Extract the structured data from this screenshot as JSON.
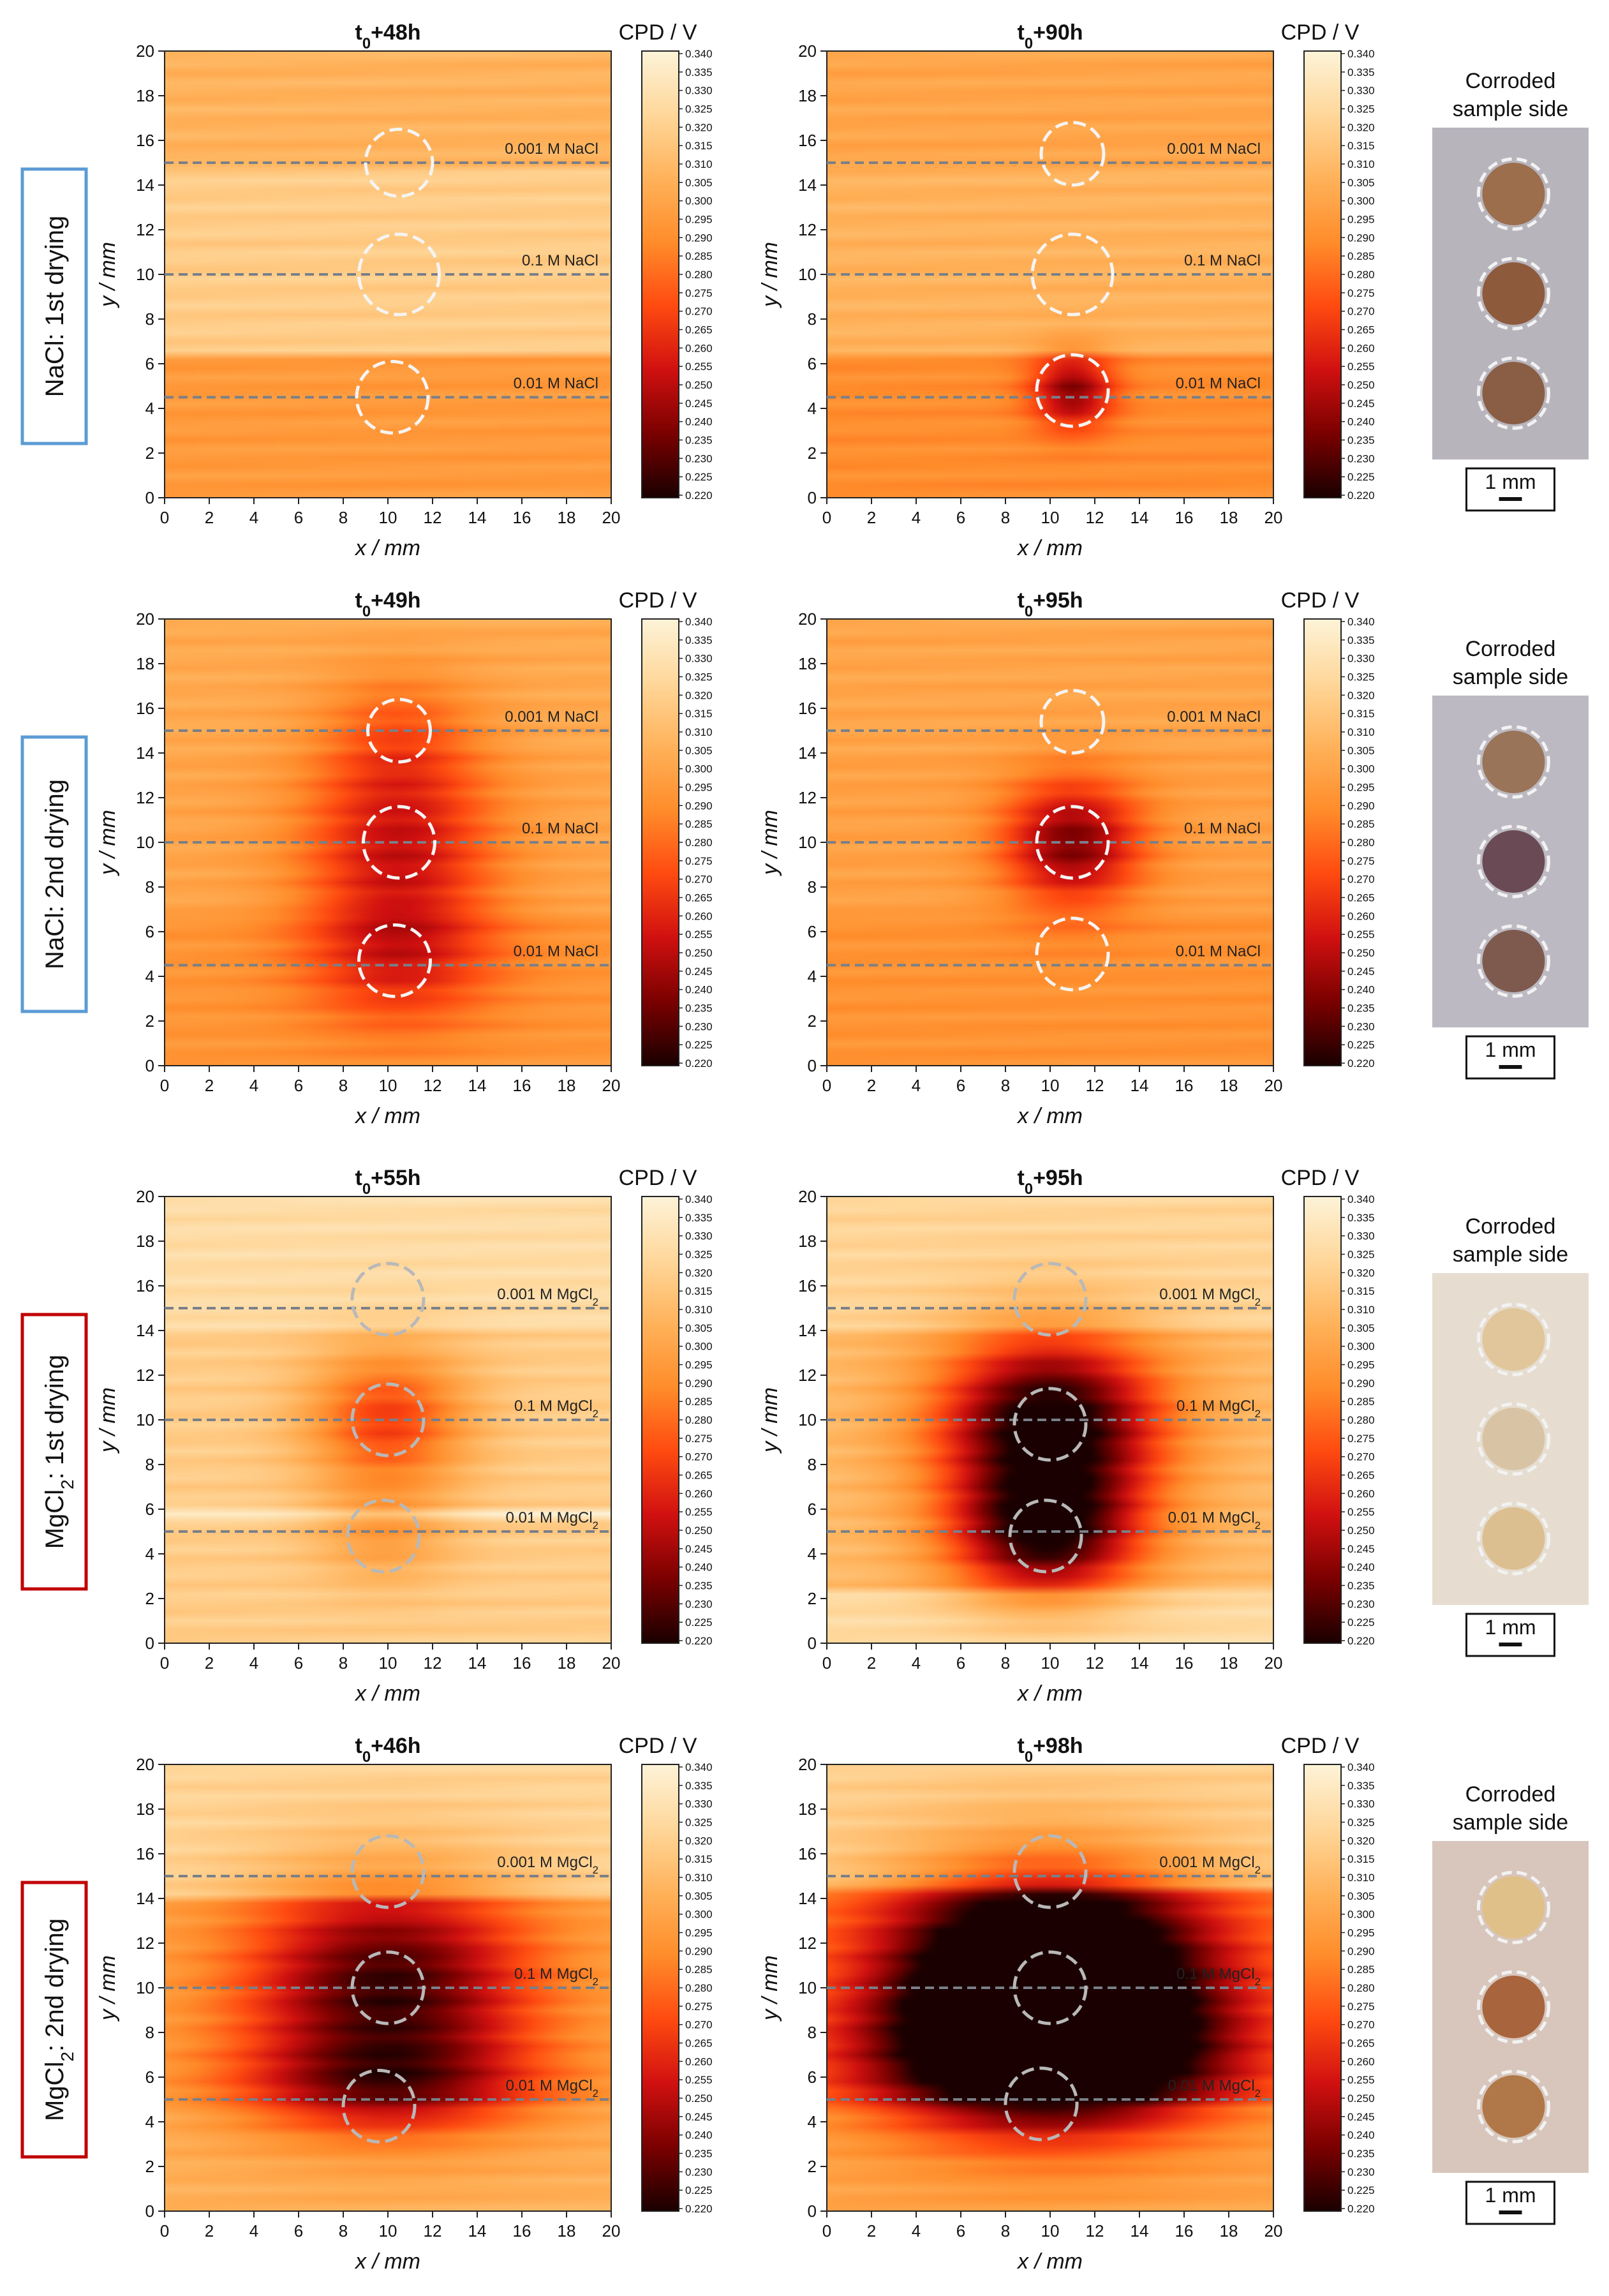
{
  "colormap": {
    "label": "CPD / V",
    "min": 0.22,
    "max": 0.34,
    "ticks": [
      "0.340",
      "0.335",
      "0.330",
      "0.325",
      "0.320",
      "0.315",
      "0.310",
      "0.305",
      "0.300",
      "0.295",
      "0.290",
      "0.285",
      "0.280",
      "0.275",
      "0.270",
      "0.265",
      "0.260",
      "0.255",
      "0.250",
      "0.245",
      "0.240",
      "0.235",
      "0.230",
      "0.225",
      "0.220"
    ],
    "stops": [
      "#1a0000",
      "#7a0000",
      "#d01010",
      "#ff4a10",
      "#ff8c2a",
      "#ffb25a",
      "#ffd79a",
      "#fdf3d8"
    ]
  },
  "axes": {
    "xlabel": "x / mm",
    "ylabel": "y / mm",
    "xlim": [
      0,
      20
    ],
    "ylim": [
      0,
      20
    ],
    "xticks": [
      "0",
      "2",
      "4",
      "6",
      "8",
      "10",
      "12",
      "14",
      "16",
      "18",
      "20"
    ],
    "yticks": [
      "0",
      "2",
      "4",
      "6",
      "8",
      "10",
      "12",
      "14",
      "16",
      "18",
      "20"
    ]
  },
  "rows": [
    {
      "row_label": "NaCl: 1st drying",
      "label_color": "#5b9bd5",
      "photo": {
        "title_line1": "Corroded",
        "title_line2": "sample side",
        "scale": "1 mm",
        "bg": "#b8b4bc",
        "spots": [
          "#9c6e4c",
          "#8e5a3c",
          "#8a5e44"
        ]
      },
      "chart_data": [
        {
          "type": "heatmap",
          "title": "t0+48h",
          "title_base": "t",
          "title_sub": "0",
          "title_rest": "+48h",
          "xlabel": "x / mm",
          "ylabel": "y / mm",
          "xlim": [
            0,
            20
          ],
          "ylim": [
            0,
            20
          ],
          "base_value": 0.306,
          "bands": [
            {
              "y0": 0,
              "y1": 6.5,
              "value": 0.295
            },
            {
              "y0": 6.5,
              "y1": 15,
              "value": 0.318
            },
            {
              "y0": 15,
              "y1": 20,
              "value": 0.306
            }
          ],
          "anomalies": [],
          "lines": [
            {
              "y": 15,
              "label": "0.001 M NaCl"
            },
            {
              "y": 10,
              "label": "0.1 M NaCl"
            },
            {
              "y": 4.5,
              "label": "0.01 M NaCl"
            }
          ],
          "circles": [
            {
              "x": 10.5,
              "y": 15,
              "r": 1.5
            },
            {
              "x": 10.5,
              "y": 10,
              "r": 1.8
            },
            {
              "x": 10.2,
              "y": 4.5,
              "r": 1.6
            }
          ],
          "circle_color": "#f4f4f4"
        },
        {
          "type": "heatmap",
          "title": "t0+90h",
          "title_base": "t",
          "title_sub": "0",
          "title_rest": "+90h",
          "xlabel": "x / mm",
          "ylabel": "y / mm",
          "xlim": [
            0,
            20
          ],
          "ylim": [
            0,
            20
          ],
          "base_value": 0.3,
          "bands": [
            {
              "y0": 0,
              "y1": 6.5,
              "value": 0.29
            },
            {
              "y0": 6.5,
              "y1": 15,
              "value": 0.306
            },
            {
              "y0": 15,
              "y1": 20,
              "value": 0.3
            }
          ],
          "anomalies": [
            {
              "x": 11,
              "y": 4.8,
              "sx": 1.3,
              "sy": 1.2,
              "depth": 0.05
            }
          ],
          "lines": [
            {
              "y": 15,
              "label": "0.001 M NaCl"
            },
            {
              "y": 10,
              "label": "0.1 M NaCl"
            },
            {
              "y": 4.5,
              "label": "0.01 M NaCl"
            }
          ],
          "circles": [
            {
              "x": 11,
              "y": 15.4,
              "r": 1.4
            },
            {
              "x": 11,
              "y": 10,
              "r": 1.8
            },
            {
              "x": 11,
              "y": 4.8,
              "r": 1.6
            }
          ],
          "circle_color": "#f4f4f4"
        }
      ]
    },
    {
      "row_label": "NaCl: 2nd drying",
      "label_color": "#5b9bd5",
      "photo": {
        "title_line1": "Corroded",
        "title_line2": "sample side",
        "scale": "1 mm",
        "bg": "#bdb9c2",
        "spots": [
          "#9a7458",
          "#6a4a54",
          "#7e5a4e"
        ]
      },
      "chart_data": [
        {
          "type": "heatmap",
          "title": "t0+49h",
          "title_base": "t",
          "title_sub": "0",
          "title_rest": "+49h",
          "xlabel": "x / mm",
          "ylabel": "y / mm",
          "xlim": [
            0,
            20
          ],
          "ylim": [
            0,
            20
          ],
          "base_value": 0.3,
          "bands": [
            {
              "y0": 0,
              "y1": 7,
              "value": 0.293
            },
            {
              "y0": 7,
              "y1": 14,
              "value": 0.3
            },
            {
              "y0": 14,
              "y1": 20,
              "value": 0.302
            }
          ],
          "anomalies": [
            {
              "x": 10.5,
              "y": 10,
              "sx": 3.0,
              "sy": 3.0,
              "depth": 0.045
            },
            {
              "x": 10.5,
              "y": 4.7,
              "sx": 3.0,
              "sy": 2.2,
              "depth": 0.03
            },
            {
              "x": 10.5,
              "y": 15,
              "sx": 2.5,
              "sy": 2.0,
              "depth": 0.02
            }
          ],
          "lines": [
            {
              "y": 15,
              "label": "0.001 M NaCl"
            },
            {
              "y": 10,
              "label": "0.1 M NaCl"
            },
            {
              "y": 4.5,
              "label": "0.01 M NaCl"
            }
          ],
          "circles": [
            {
              "x": 10.5,
              "y": 15,
              "r": 1.4
            },
            {
              "x": 10.5,
              "y": 10,
              "r": 1.6
            },
            {
              "x": 10.3,
              "y": 4.7,
              "r": 1.6
            }
          ],
          "circle_color": "#f4f4f4"
        },
        {
          "type": "heatmap",
          "title": "t0+95h",
          "title_base": "t",
          "title_sub": "0",
          "title_rest": "+95h",
          "xlabel": "x / mm",
          "ylabel": "y / mm",
          "xlim": [
            0,
            20
          ],
          "ylim": [
            0,
            20
          ],
          "base_value": 0.296,
          "bands": [
            {
              "y0": 0,
              "y1": 7,
              "value": 0.292
            },
            {
              "y0": 7,
              "y1": 14,
              "value": 0.298
            },
            {
              "y0": 14,
              "y1": 20,
              "value": 0.3
            }
          ],
          "anomalies": [
            {
              "x": 11,
              "y": 10,
              "sx": 2.2,
              "sy": 2.0,
              "depth": 0.06
            }
          ],
          "lines": [
            {
              "y": 15,
              "label": "0.001 M NaCl"
            },
            {
              "y": 10,
              "label": "0.1 M NaCl"
            },
            {
              "y": 4.5,
              "label": "0.01 M NaCl"
            }
          ],
          "circles": [
            {
              "x": 11,
              "y": 15.4,
              "r": 1.4
            },
            {
              "x": 11,
              "y": 10,
              "r": 1.6
            },
            {
              "x": 11,
              "y": 5,
              "r": 1.6
            }
          ],
          "circle_color": "#f4f4f4"
        }
      ]
    },
    {
      "row_label": "MgCl2: 1st drying",
      "label_color": "#c00000",
      "photo": {
        "title_line1": "Corroded",
        "title_line2": "sample side",
        "scale": "1 mm",
        "bg": "#e6ddd0",
        "spots": [
          "#e0c69a",
          "#d8c4a4",
          "#dcbf90"
        ]
      },
      "chart_data": [
        {
          "type": "heatmap",
          "title": "t0+55h",
          "title_base": "t",
          "title_sub": "0",
          "title_rest": "+55h",
          "xlabel": "x / mm",
          "ylabel": "y / mm",
          "xlim": [
            0,
            20
          ],
          "ylim": [
            0,
            20
          ],
          "base_value": 0.322,
          "bands": [
            {
              "y0": 0,
              "y1": 5.5,
              "value": 0.318
            },
            {
              "y0": 5.5,
              "y1": 6.2,
              "value": 0.338
            },
            {
              "y0": 6.2,
              "y1": 14,
              "value": 0.318
            },
            {
              "y0": 14,
              "y1": 20,
              "value": 0.326
            }
          ],
          "anomalies": [
            {
              "x": 10,
              "y": 10,
              "sx": 2.5,
              "sy": 2.2,
              "depth": 0.05
            },
            {
              "x": 9.8,
              "y": 4.8,
              "sx": 2.2,
              "sy": 1.6,
              "depth": 0.02
            }
          ],
          "lines": [
            {
              "y": 15,
              "label": "0.001 M MgCl2",
              "sub": true
            },
            {
              "y": 10,
              "label": "0.1 M MgCl2",
              "sub": true
            },
            {
              "y": 5,
              "label": "0.01 M MgCl2",
              "sub": true
            }
          ],
          "circles": [
            {
              "x": 10,
              "y": 15.4,
              "r": 1.6
            },
            {
              "x": 10,
              "y": 10,
              "r": 1.6
            },
            {
              "x": 9.8,
              "y": 4.8,
              "r": 1.6
            }
          ],
          "circle_color": "#b8b8b8"
        },
        {
          "type": "heatmap",
          "title": "t0+95h",
          "title_base": "t",
          "title_sub": "0",
          "title_rest": "+95h",
          "xlabel": "x / mm",
          "ylabel": "y / mm",
          "xlim": [
            0,
            20
          ],
          "ylim": [
            0,
            20
          ],
          "base_value": 0.318,
          "bands": [
            {
              "y0": 0,
              "y1": 2.5,
              "value": 0.325
            },
            {
              "y0": 2.5,
              "y1": 14,
              "value": 0.31
            },
            {
              "y0": 14,
              "y1": 20,
              "value": 0.322
            }
          ],
          "anomalies": [
            {
              "x": 10,
              "y": 9.8,
              "sx": 3.5,
              "sy": 2.8,
              "depth": 0.1
            },
            {
              "x": 9.8,
              "y": 4.8,
              "sx": 3.0,
              "sy": 2.0,
              "depth": 0.08
            }
          ],
          "lines": [
            {
              "y": 15,
              "label": "0.001 M MgCl2",
              "sub": true
            },
            {
              "y": 10,
              "label": "0.1 M MgCl2",
              "sub": true
            },
            {
              "y": 5,
              "label": "0.01 M MgCl2",
              "sub": true
            }
          ],
          "circles": [
            {
              "x": 10,
              "y": 15.4,
              "r": 1.6
            },
            {
              "x": 10,
              "y": 9.8,
              "r": 1.6
            },
            {
              "x": 9.8,
              "y": 4.8,
              "r": 1.6
            }
          ],
          "circle_color": "#b8b8b8"
        }
      ]
    },
    {
      "row_label": "MgCl2: 2nd drying",
      "label_color": "#c00000",
      "photo": {
        "title_line1": "Corroded",
        "title_line2": "sample side",
        "scale": "1 mm",
        "bg": "#d8c6bc",
        "spots": [
          "#e0c089",
          "#a8643c",
          "#b07848"
        ]
      },
      "chart_data": [
        {
          "type": "heatmap",
          "title": "t0+46h",
          "title_base": "t",
          "title_sub": "0",
          "title_rest": "+46h",
          "xlabel": "x / mm",
          "ylabel": "y / mm",
          "xlim": [
            0,
            20
          ],
          "ylim": [
            0,
            20
          ],
          "base_value": 0.318,
          "bands": [
            {
              "y0": 0,
              "y1": 5,
              "value": 0.305
            },
            {
              "y0": 5,
              "y1": 14,
              "value": 0.3
            },
            {
              "y0": 14,
              "y1": 20,
              "value": 0.322
            }
          ],
          "anomalies": [
            {
              "x": 10,
              "y": 10,
              "sx": 4.5,
              "sy": 3.5,
              "depth": 0.075
            },
            {
              "x": 10,
              "y": 5.5,
              "sx": 5.0,
              "sy": 1.5,
              "depth": 0.04
            }
          ],
          "lines": [
            {
              "y": 15,
              "label": "0.001 M MgCl2",
              "sub": true
            },
            {
              "y": 10,
              "label": "0.1 M MgCl2",
              "sub": true
            },
            {
              "y": 5,
              "label": "0.01 M MgCl2",
              "sub": true
            }
          ],
          "circles": [
            {
              "x": 10,
              "y": 15.2,
              "r": 1.6
            },
            {
              "x": 10,
              "y": 10,
              "r": 1.6
            },
            {
              "x": 9.6,
              "y": 4.7,
              "r": 1.6
            }
          ],
          "circle_color": "#b8b8b8"
        },
        {
          "type": "heatmap",
          "title": "t0+98h",
          "title_base": "t",
          "title_sub": "0",
          "title_rest": "+98h",
          "xlabel": "x / mm",
          "ylabel": "y / mm",
          "xlim": [
            0,
            20
          ],
          "ylim": [
            0,
            20
          ],
          "base_value": 0.316,
          "bands": [
            {
              "y0": 0,
              "y1": 5,
              "value": 0.3
            },
            {
              "y0": 5,
              "y1": 14.5,
              "value": 0.29
            },
            {
              "y0": 14.5,
              "y1": 20,
              "value": 0.32
            }
          ],
          "anomalies": [
            {
              "x": 10,
              "y": 10,
              "sx": 5.0,
              "sy": 3.6,
              "depth": 0.14
            },
            {
              "x": 9.8,
              "y": 6.5,
              "sx": 6.0,
              "sy": 2.0,
              "depth": 0.05
            }
          ],
          "lines": [
            {
              "y": 15,
              "label": "0.001 M MgCl2",
              "sub": true
            },
            {
              "y": 10,
              "label": "0.1 M MgCl2",
              "sub": true
            },
            {
              "y": 5,
              "label": "0.01 M MgCl2",
              "sub": true
            }
          ],
          "circles": [
            {
              "x": 10,
              "y": 15.2,
              "r": 1.6
            },
            {
              "x": 10,
              "y": 10,
              "r": 1.6
            },
            {
              "x": 9.6,
              "y": 4.8,
              "r": 1.6
            }
          ],
          "circle_color": "#b8b8b8"
        }
      ]
    }
  ]
}
